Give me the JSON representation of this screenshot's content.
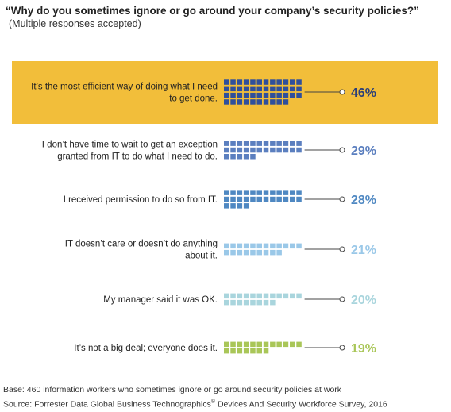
{
  "chart_data": {
    "type": "bar",
    "title": "“Why do you sometimes ignore or go around your company’s security policies?”",
    "subtitle": "(Multiple responses accepted)",
    "categories": [
      "It’s the most efficient way of doing what I need to get done.",
      "I don’t have time to wait to get an exception granted from IT to do what I need to do.",
      "I received permission to do so from IT.",
      "IT doesn’t care or doesn’t do anything about it.",
      "My manager said it was OK.",
      "It’s not a big deal; everyone does it."
    ],
    "category_lines": [
      [
        "It’s the most efficient way of doing what I need",
        "to get done."
      ],
      [
        "I don’t have time to wait to get an exception",
        "granted from IT to do what I need to do."
      ],
      [
        "I received permission to do so from IT."
      ],
      [
        "IT doesn’t care or doesn’t do anything",
        "about it."
      ],
      [
        "My manager said it was OK."
      ],
      [
        "It’s not a big deal; everyone does it."
      ]
    ],
    "values": [
      46,
      29,
      28,
      21,
      20,
      19
    ],
    "value_labels": [
      "46%",
      "29%",
      "28%",
      "21%",
      "20%",
      "19%"
    ],
    "unit": "%",
    "encoding": "waffle",
    "highlight_color": "#f2be3a",
    "colors": [
      "#2f4f9c",
      "#5b7fbf",
      "#4f88c2",
      "#9ac8e8",
      "#a9d5dd",
      "#a9c658"
    ],
    "label_colors": [
      "#2b3f78",
      "#5b7fbf",
      "#4f88c2",
      "#9ac8e8",
      "#a9d5dd",
      "#a9c658"
    ],
    "grid": false,
    "legend": "none"
  },
  "footnotes": {
    "base": "Base: 460 information workers who sometimes ignore or go around security policies at work",
    "source_prefix": "Source: Forrester Data Global Business Technographics",
    "source_reg": "®",
    "source_suffix": " Devices And Security Workforce Survey, 2016"
  }
}
